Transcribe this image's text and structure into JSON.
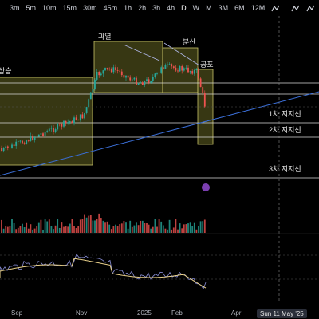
{
  "toolbar": {
    "intervals": [
      "",
      "3m",
      "5m",
      "10m",
      "15m",
      "30m",
      "45m",
      "1h",
      "2h",
      "3h",
      "4h",
      "D",
      "W",
      "M",
      "3M",
      "6M",
      "12M"
    ],
    "active_interval": "D"
  },
  "annotations": {
    "zone_rise": "상승",
    "zone_overheat": "과열",
    "zone_distribution": "분산",
    "zone_fear": "공포",
    "support_1": "1차 지지선",
    "support_2": "2차 지지선",
    "support_3": "3차 지지선"
  },
  "x_axis": {
    "labels": [
      "Sep",
      "Nov",
      "2025",
      "Feb",
      "Apr"
    ],
    "crosshair_date": "Sun 11 May '25"
  },
  "colors": {
    "up": "#26a69a",
    "down": "#ef5350",
    "zone_fill": "#7a7a2a",
    "trendline": "#3b6fd8",
    "rsi": "#e8d08a",
    "rsi_fast": "#8a8fd8"
  }
}
